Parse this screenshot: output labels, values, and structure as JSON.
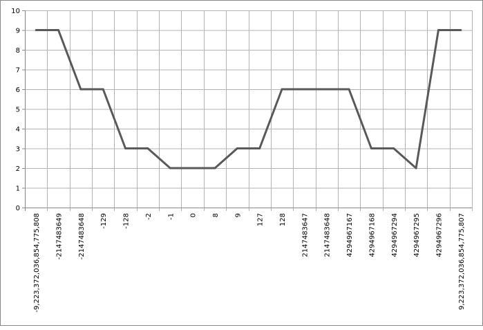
{
  "chart_data": {
    "type": "line",
    "categories": [
      "-9,223,372,036,854,775,808",
      "-2147483649",
      "-2147483648",
      "-129",
      "-128",
      "-2",
      "-1",
      "0",
      "8",
      "9",
      "127",
      "128",
      "2147483647",
      "2147483648",
      "4294967167",
      "4294967168",
      "4294967294",
      "4294967295",
      "4294967296",
      "9,223,372,036,854,775,807"
    ],
    "series": [
      {
        "values": [
          9,
          9,
          6,
          6,
          3,
          3,
          2,
          2,
          2,
          3,
          3,
          6,
          6,
          6,
          6,
          3,
          3,
          2,
          9,
          9
        ],
        "color": "#595959"
      }
    ],
    "ylim": [
      0,
      10
    ],
    "yticks": [
      0,
      1,
      2,
      3,
      4,
      5,
      6,
      7,
      8,
      9,
      10
    ],
    "grid": true,
    "legend": "none",
    "title": "",
    "xlabel": "",
    "ylabel": ""
  }
}
